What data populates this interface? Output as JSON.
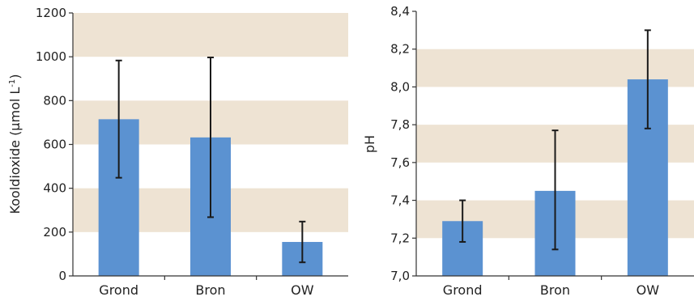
{
  "colors": {
    "band": "#eee3d3",
    "bar": "#5b92d1",
    "axis": "#333333",
    "errorbar": "#1a1a1a"
  },
  "chart_data": [
    {
      "type": "bar",
      "categories": [
        "Grond",
        "Bron",
        "OW"
      ],
      "values": [
        715,
        632,
        155
      ],
      "error_low": [
        448,
        268,
        62
      ],
      "error_high": [
        983,
        997,
        248
      ],
      "ylabel": "Kooldioxide (µmol L",
      "ylabel_sup": "-1",
      "ylabel_close": ")",
      "ylim": [
        0,
        1200
      ],
      "yticks": [
        0,
        200,
        400,
        600,
        800,
        1000,
        1200
      ],
      "ytick_labels": [
        "0",
        "200",
        "400",
        "600",
        "800",
        "1000",
        "1200"
      ],
      "grid": "alternating horizontal bands"
    },
    {
      "type": "bar",
      "categories": [
        "Grond",
        "Bron",
        "OW"
      ],
      "values": [
        7.29,
        7.45,
        8.04
      ],
      "error_low": [
        7.18,
        7.14,
        7.78
      ],
      "error_high": [
        7.4,
        7.77,
        8.3
      ],
      "ylabel": "pH",
      "ylim": [
        7.0,
        8.4
      ],
      "yticks": [
        7.0,
        7.2,
        7.4,
        7.6,
        7.8,
        8.0,
        8.2,
        8.4
      ],
      "ytick_labels": [
        "7,0",
        "7,2",
        "7,4",
        "7,6",
        "7,8",
        "8,0",
        "8,2",
        "8,4"
      ],
      "grid": "alternating horizontal bands"
    }
  ]
}
